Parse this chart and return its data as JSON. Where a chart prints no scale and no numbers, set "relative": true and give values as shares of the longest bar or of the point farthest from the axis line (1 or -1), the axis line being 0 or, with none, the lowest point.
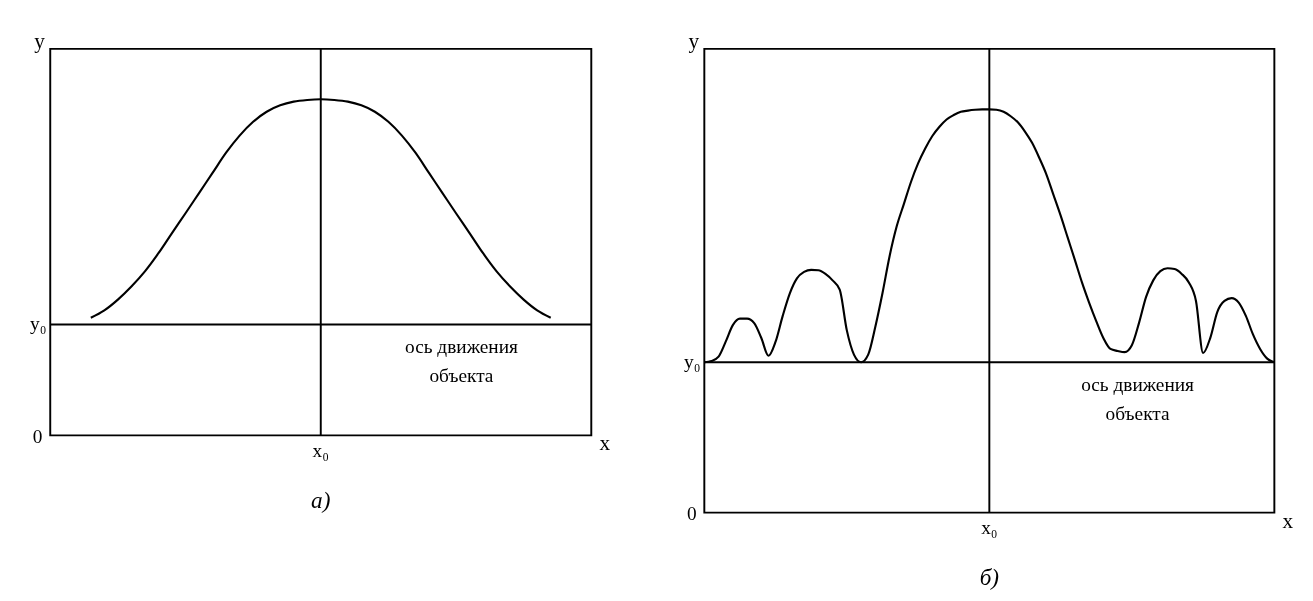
{
  "chart_data": [
    {
      "type": "line",
      "relative": true,
      "title": "а)",
      "xlabel": "x",
      "ylabel": "y",
      "grid": false,
      "categories": [
        null,
        null,
        null,
        null,
        null,
        null,
        null,
        null,
        null,
        null,
        null,
        null,
        null,
        null,
        null,
        null,
        null,
        null,
        null,
        null,
        null,
        null,
        null,
        null,
        null,
        null,
        null,
        null,
        null,
        null,
        null,
        null,
        null,
        null,
        null,
        null,
        null,
        null,
        null,
        null,
        null
      ],
      "series": [
        {
          "color": "#000000",
          "values": [
            null,
            null,
            null,
            0.35,
            0.372,
            0.404,
            0.443,
            0.488,
            0.542,
            0.602,
            0.661,
            0.721,
            0.781,
            0.841,
            0.892,
            0.933,
            0.963,
            0.982,
            0.993,
            0.998,
            1,
            0.998,
            0.993,
            0.982,
            0.963,
            0.933,
            0.892,
            0.841,
            0.781,
            0.721,
            0.661,
            0.602,
            0.542,
            0.488,
            0.443,
            0.404,
            0.372,
            0.35,
            null,
            null,
            null
          ]
        }
      ],
      "ref_lines": [
        {
          "axis": "y",
          "value": 0.33,
          "label": "y₀"
        }
      ],
      "annotations": [
        "0",
        "x₀",
        "ось движения\nобъекта"
      ]
    },
    {
      "type": "line",
      "relative": true,
      "title": "б)",
      "xlabel": "x",
      "ylabel": "y",
      "grid": false,
      "categories": [
        null,
        null,
        null,
        null,
        null,
        null,
        null,
        null,
        null,
        null,
        null,
        null,
        null,
        null,
        null,
        null,
        null,
        null,
        null,
        null,
        null,
        null,
        null,
        null,
        null,
        null,
        null,
        null,
        null,
        null,
        null,
        null,
        null,
        null,
        null,
        null,
        null,
        null,
        null,
        null,
        null,
        null,
        null,
        null,
        null,
        null,
        null,
        null,
        null,
        null,
        null,
        null,
        null,
        null,
        null,
        null,
        null,
        null,
        null,
        null,
        null,
        null,
        null,
        null,
        null,
        null,
        null,
        null,
        null,
        null,
        null,
        null,
        null,
        null,
        null,
        null,
        null,
        null,
        null,
        null,
        null
      ],
      "series": [
        {
          "color": "#000000",
          "values": [
            0.373,
            0.376,
            0.387,
            0.424,
            0.465,
            0.481,
            0.481,
            0.47,
            0.433,
            0.389,
            0.424,
            0.488,
            0.544,
            0.581,
            0.597,
            0.602,
            0.601,
            0.592,
            0.576,
            0.553,
            0.452,
            0.392,
            0.373,
            0.392,
            0.461,
            0.544,
            0.636,
            0.71,
            0.765,
            0.82,
            0.866,
            0.903,
            0.934,
            0.957,
            0.975,
            0.986,
            0.994,
            0.997,
            0.999,
            1.0,
            1.0,
            0.999,
            0.994,
            0.983,
            0.968,
            0.945,
            0.917,
            0.88,
            0.839,
            0.788,
            0.737,
            0.682,
            0.627,
            0.571,
            0.521,
            0.475,
            0.433,
            0.406,
            0.401,
            0.398,
            0.415,
            0.47,
            0.535,
            0.576,
            0.599,
            0.606,
            0.604,
            0.592,
            0.571,
            0.525,
            0.396,
            0.433,
            0.498,
            0.525,
            0.532,
            0.521,
            0.488,
            0.442,
            0.406,
            0.382,
            0.373
          ]
        }
      ],
      "ref_lines": [
        {
          "axis": "y",
          "value": 0.373,
          "label": "y₀"
        }
      ],
      "annotations": [
        "0",
        "x₀",
        "ось движения\nобъекта"
      ]
    }
  ]
}
